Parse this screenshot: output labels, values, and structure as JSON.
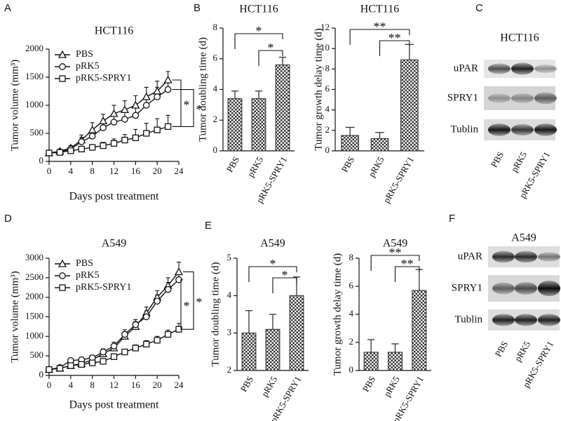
{
  "chart_data": [
    {
      "type": "line",
      "panel": "A",
      "title": "HCT116",
      "xlabel": "Days post treatment",
      "ylabel": "Tumor volume (mm³)",
      "x": [
        0,
        2,
        4,
        6,
        8,
        10,
        12,
        14,
        16,
        18,
        20,
        22
      ],
      "xlim": [
        0,
        24
      ],
      "xticks": [
        0,
        4,
        8,
        12,
        16,
        20,
        24
      ],
      "ylim": [
        0,
        2000
      ],
      "yticks": [
        0,
        500,
        1000,
        1500,
        2000
      ],
      "legend": "upper left",
      "color": "#111111",
      "series": [
        {
          "name": "PBS",
          "marker": "triangle",
          "values": [
            150,
            180,
            240,
            380,
            560,
            720,
            850,
            920,
            1000,
            1150,
            1250,
            1450
          ],
          "errors": [
            20,
            30,
            40,
            90,
            130,
            120,
            150,
            160,
            170,
            170,
            180,
            150
          ]
        },
        {
          "name": "pRK5",
          "marker": "circle",
          "values": [
            150,
            170,
            220,
            350,
            450,
            600,
            700,
            750,
            820,
            1000,
            1150,
            1280
          ],
          "errors": [
            20,
            30,
            40,
            80,
            110,
            120,
            130,
            140,
            150,
            160,
            170,
            140
          ]
        },
        {
          "name": "pRK5-SPRY1",
          "marker": "square",
          "values": [
            150,
            160,
            190,
            220,
            250,
            280,
            320,
            380,
            420,
            500,
            560,
            620
          ],
          "errors": [
            20,
            20,
            30,
            40,
            50,
            60,
            80,
            100,
            150,
            180,
            200,
            200
          ]
        }
      ],
      "annotations": [
        "*",
        "*"
      ]
    },
    {
      "type": "bar",
      "panel": "B",
      "title": "HCT116",
      "ylabel": "Tumor doubling time (d)",
      "categories": [
        "PBS",
        "pRK5",
        "pRK5-SPRY1"
      ],
      "values": [
        3.4,
        3.4,
        5.6
      ],
      "errors": [
        0.5,
        0.5,
        0.5
      ],
      "ylim": [
        0,
        8
      ],
      "yticks": [
        0,
        2,
        4,
        6,
        8
      ],
      "color": "#333333",
      "annotations": [
        "*",
        "*"
      ]
    },
    {
      "type": "bar",
      "title": "HCT116",
      "ylabel": "Tumor growth delay time (d)",
      "categories": [
        "PBS",
        "pRK5",
        "pRK5-SPRY1"
      ],
      "values": [
        1.5,
        1.2,
        8.9
      ],
      "errors": [
        0.8,
        0.6,
        1.5
      ],
      "ylim": [
        0,
        12
      ],
      "yticks": [
        0,
        2,
        4,
        6,
        8,
        10,
        12
      ],
      "color": "#333333",
      "annotations": [
        "**",
        "**"
      ]
    },
    {
      "type": "line",
      "panel": "D",
      "title": "A549",
      "xlabel": "Days post treatment",
      "ylabel": "Tumor volume (mm³)",
      "x": [
        0,
        2,
        4,
        6,
        8,
        10,
        12,
        14,
        16,
        18,
        20,
        22,
        24
      ],
      "xlim": [
        0,
        24
      ],
      "xticks": [
        0,
        4,
        8,
        12,
        16,
        20,
        24
      ],
      "ylim": [
        0,
        3000
      ],
      "yticks": [
        0,
        500,
        1000,
        1500,
        2000,
        2500,
        3000
      ],
      "legend": "upper left",
      "color": "#111111",
      "series": [
        {
          "name": "PBS",
          "marker": "triangle",
          "values": [
            150,
            180,
            250,
            300,
            400,
            550,
            700,
            1000,
            1250,
            1600,
            2000,
            2300,
            2650
          ],
          "errors": [
            30,
            40,
            50,
            60,
            70,
            80,
            100,
            120,
            130,
            150,
            170,
            200,
            250
          ]
        },
        {
          "name": "pRK5",
          "marker": "circle",
          "values": [
            150,
            200,
            380,
            400,
            450,
            600,
            750,
            1050,
            1300,
            1500,
            1900,
            2200,
            2450
          ],
          "errors": [
            30,
            40,
            50,
            60,
            70,
            80,
            100,
            120,
            130,
            150,
            160,
            180,
            200
          ]
        },
        {
          "name": "pRK5-SPRY1",
          "marker": "square",
          "values": [
            150,
            180,
            250,
            280,
            320,
            360,
            480,
            600,
            700,
            800,
            900,
            1050,
            1180
          ],
          "errors": [
            20,
            30,
            40,
            40,
            50,
            50,
            60,
            70,
            80,
            90,
            100,
            110,
            150
          ]
        }
      ],
      "annotations": [
        "*",
        "*"
      ]
    },
    {
      "type": "bar",
      "panel": "E",
      "title": "A549",
      "ylabel": "Tumor doubling time (d)",
      "categories": [
        "PBS",
        "pRK5",
        "pRK5-SPRY1"
      ],
      "values": [
        3.0,
        3.1,
        4.0
      ],
      "errors": [
        0.6,
        0.4,
        0.5
      ],
      "ylim": [
        2,
        5
      ],
      "yticks": [
        2,
        3,
        4,
        5
      ],
      "color": "#333333",
      "annotations": [
        "*",
        "*"
      ]
    },
    {
      "type": "bar",
      "title": "A549",
      "ylabel": "Tumor growth delay time (d)",
      "categories": [
        "PBS",
        "pRK5",
        "pRK5-SPRY1"
      ],
      "values": [
        1.3,
        1.3,
        5.7
      ],
      "errors": [
        0.9,
        0.6,
        1.5
      ],
      "ylim": [
        0,
        8
      ],
      "yticks": [
        0,
        2,
        4,
        6,
        8
      ],
      "color": "#333333",
      "annotations": [
        "**",
        "**"
      ]
    }
  ],
  "blots": [
    {
      "panel": "C",
      "title": "HCT116",
      "rows": [
        "uPAR",
        "SPRY1",
        "Tublin"
      ],
      "lanes": [
        "PBS",
        "pRK5",
        "pRK5-SPRY1"
      ]
    },
    {
      "panel": "F",
      "title": "A549",
      "rows": [
        "uPAR",
        "SPRY1",
        "Tublin"
      ],
      "lanes": [
        "PBS",
        "pRK5",
        "pRK5-SPRY1"
      ]
    }
  ]
}
